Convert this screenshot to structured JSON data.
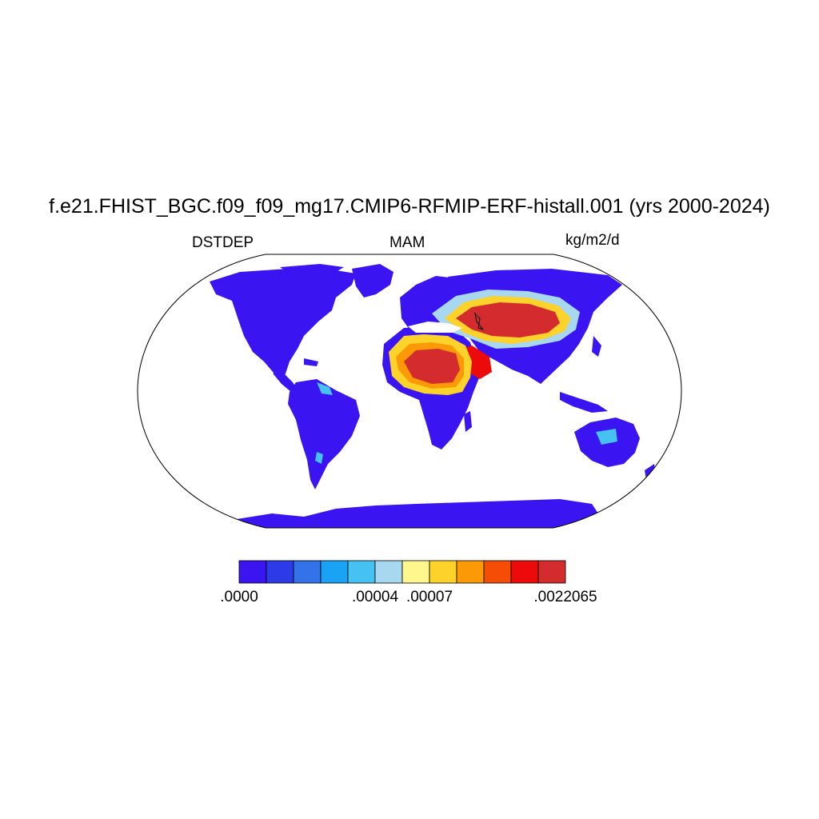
{
  "title": "f.e21.FHIST_BGC.f09_f09_mg17.CMIP6-RFMIP-ERF-histall.001 (yrs 2000-2024)",
  "left_label": "DSTDEP",
  "center_label": "MAM",
  "right_label": "kg/m2/d",
  "colorbar": {
    "colors": [
      "#3b14f2",
      "#2c3ae8",
      "#3472ea",
      "#1aa2f5",
      "#45c2f2",
      "#a8d8f0",
      "#fff78e",
      "#fdd22a",
      "#fb9a06",
      "#f64d06",
      "#ec0a0a",
      "#d42b2f"
    ],
    "labels": [
      {
        "text": ".0000",
        "edge": 0
      },
      {
        "text": ".00004",
        "edge": 5
      },
      {
        "text": ".00007",
        "edge": 7
      },
      {
        "text": ".0022065",
        "edge": 12
      }
    ]
  }
}
